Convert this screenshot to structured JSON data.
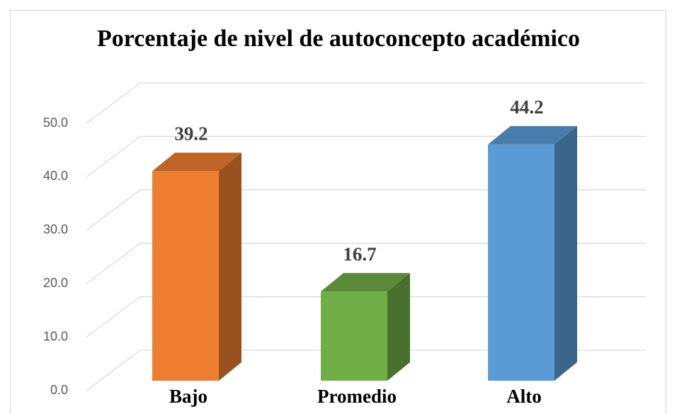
{
  "chart_data": {
    "type": "bar3d",
    "title": "Porcentaje de nivel de autoconcepto académico",
    "categories": [
      "Bajo",
      "Promedio",
      "Alto"
    ],
    "values": [
      39.2,
      16.7,
      44.2
    ],
    "colors": [
      "#ed7d31",
      "#70ad47",
      "#5b9bd5"
    ],
    "ylim": [
      0,
      50
    ],
    "yticks": [
      {
        "value": 0,
        "label": "0.0"
      },
      {
        "value": 10,
        "label": "10.0"
      },
      {
        "value": 20,
        "label": "20.0"
      },
      {
        "value": 30,
        "label": "30.0"
      },
      {
        "value": 40,
        "label": "40.0"
      },
      {
        "value": 50,
        "label": "50.0"
      }
    ],
    "grid": true
  }
}
